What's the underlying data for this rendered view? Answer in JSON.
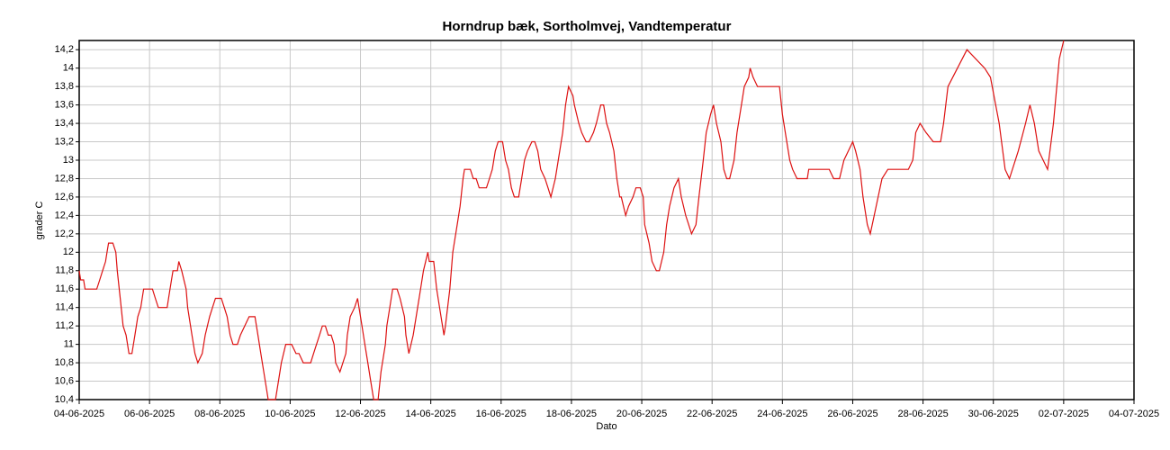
{
  "chart_data": {
    "type": "line",
    "title": "Horndrup bæk, Sortholmvej, Vandtemperatur",
    "x_label": "Dato",
    "y_label": "grader C",
    "grid": true,
    "xlim": [
      "2025-06-04",
      "2025-07-04"
    ],
    "xticks": [
      {
        "value": "2025-06-04",
        "label": "04-06-2025"
      },
      {
        "value": "2025-06-06",
        "label": "06-06-2025"
      },
      {
        "value": "2025-06-08",
        "label": "08-06-2025"
      },
      {
        "value": "2025-06-10",
        "label": "10-06-2025"
      },
      {
        "value": "2025-06-12",
        "label": "12-06-2025"
      },
      {
        "value": "2025-06-14",
        "label": "14-06-2025"
      },
      {
        "value": "2025-06-16",
        "label": "16-06-2025"
      },
      {
        "value": "2025-06-18",
        "label": "18-06-2025"
      },
      {
        "value": "2025-06-20",
        "label": "20-06-2025"
      },
      {
        "value": "2025-06-22",
        "label": "22-06-2025"
      },
      {
        "value": "2025-06-24",
        "label": "24-06-2025"
      },
      {
        "value": "2025-06-26",
        "label": "26-06-2025"
      },
      {
        "value": "2025-06-28",
        "label": "28-06-2025"
      },
      {
        "value": "2025-06-30",
        "label": "30-06-2025"
      },
      {
        "value": "2025-07-02",
        "label": "02-07-2025"
      },
      {
        "value": "2025-07-04",
        "label": "04-07-2025"
      }
    ],
    "ylim": [
      10.4,
      14.3
    ],
    "yticks": [
      {
        "value": 10.4,
        "label": "10,4"
      },
      {
        "value": 10.6,
        "label": "10,6"
      },
      {
        "value": 10.8,
        "label": "10,8"
      },
      11,
      {
        "value": 11.2,
        "label": "11,2"
      },
      {
        "value": 11.4,
        "label": "11,4"
      },
      {
        "value": 11.6,
        "label": "11,6"
      },
      {
        "value": 11.8,
        "label": "11,8"
      },
      12,
      {
        "value": 12.2,
        "label": "12,2"
      },
      {
        "value": 12.4,
        "label": "12,4"
      },
      {
        "value": 12.6,
        "label": "12,6"
      },
      {
        "value": 12.8,
        "label": "12,8"
      },
      13,
      {
        "value": 13.2,
        "label": "13,2"
      },
      {
        "value": 13.4,
        "label": "13,4"
      },
      {
        "value": 13.6,
        "label": "13,6"
      },
      {
        "value": 13.8,
        "label": "13,8"
      },
      14,
      {
        "value": 14.2,
        "label": "14,2"
      }
    ],
    "x": [
      "2025-06-04 00:00",
      "2025-06-04 01:00",
      "2025-06-04 03:00",
      "2025-06-04 04:00",
      "2025-06-04 12:00",
      "2025-06-04 14:00",
      "2025-06-04 16:00",
      "2025-06-04 18:00",
      "2025-06-04 19:00",
      "2025-06-04 20:00",
      "2025-06-04 23:00",
      "2025-06-05 01:00",
      "2025-06-05 02:00",
      "2025-06-05 04:00",
      "2025-06-05 06:00",
      "2025-06-05 08:00",
      "2025-06-05 10:00",
      "2025-06-05 12:00",
      "2025-06-05 14:00",
      "2025-06-05 16:00",
      "2025-06-05 18:00",
      "2025-06-05 20:00",
      "2025-06-06 02:00",
      "2025-06-06 04:00",
      "2025-06-06 06:00",
      "2025-06-06 12:00",
      "2025-06-06 14:00",
      "2025-06-06 16:00",
      "2025-06-06 19:00",
      "2025-06-06 20:00",
      "2025-06-06 22:00",
      "2025-06-07 01:00",
      "2025-06-07 02:00",
      "2025-06-07 05:00",
      "2025-06-07 07:00",
      "2025-06-07 09:00",
      "2025-06-07 12:00",
      "2025-06-07 14:00",
      "2025-06-07 17:00",
      "2025-06-07 19:00",
      "2025-06-07 21:00",
      "2025-06-08 01:00",
      "2025-06-08 03:00",
      "2025-06-08 05:00",
      "2025-06-08 07:00",
      "2025-06-08 09:00",
      "2025-06-08 12:00",
      "2025-06-08 14:00",
      "2025-06-08 17:00",
      "2025-06-08 20:00",
      "2025-06-09 00:00",
      "2025-06-09 02:00",
      "2025-06-09 04:00",
      "2025-06-09 06:00",
      "2025-06-09 08:00",
      "2025-06-09 09:00",
      "2025-06-09 14:00",
      "2025-06-09 16:00",
      "2025-06-09 18:00",
      "2025-06-09 21:00",
      "2025-06-10 01:00",
      "2025-06-10 04:00",
      "2025-06-10 06:00",
      "2025-06-10 09:00",
      "2025-06-10 14:00",
      "2025-06-10 16:00",
      "2025-06-10 18:00",
      "2025-06-10 20:00",
      "2025-06-10 22:00",
      "2025-06-11 00:00",
      "2025-06-11 02:00",
      "2025-06-11 04:00",
      "2025-06-11 06:00",
      "2025-06-11 07:00",
      "2025-06-11 10:00",
      "2025-06-11 12:00",
      "2025-06-11 14:00",
      "2025-06-11 15:00",
      "2025-06-11 17:00",
      "2025-06-11 20:00",
      "2025-06-11 22:00",
      "2025-06-11 23:00",
      "2025-06-12 01:00",
      "2025-06-12 03:00",
      "2025-06-12 05:00",
      "2025-06-12 07:00",
      "2025-06-12 09:00",
      "2025-06-12 12:00",
      "2025-06-12 14:00",
      "2025-06-12 17:00",
      "2025-06-12 18:00",
      "2025-06-12 20:00",
      "2025-06-12 22:00",
      "2025-06-13 01:00",
      "2025-06-13 03:00",
      "2025-06-13 06:00",
      "2025-06-13 07:00",
      "2025-06-13 09:00",
      "2025-06-13 12:00",
      "2025-06-13 14:00",
      "2025-06-13 17:00",
      "2025-06-13 19:00",
      "2025-06-13 22:00",
      "2025-06-13 23:00",
      "2025-06-14 02:00",
      "2025-06-14 04:00",
      "2025-06-14 06:00",
      "2025-06-14 09:00",
      "2025-06-14 10:00",
      "2025-06-14 13:00",
      "2025-06-14 15:00",
      "2025-06-14 18:00",
      "2025-06-14 20:00",
      "2025-06-14 22:00",
      "2025-06-14 23:00",
      "2025-06-15 03:00",
      "2025-06-15 05:00",
      "2025-06-15 07:00",
      "2025-06-15 09:00",
      "2025-06-15 14:00",
      "2025-06-15 16:00",
      "2025-06-15 18:00",
      "2025-06-15 20:00",
      "2025-06-15 22:00",
      "2025-06-16 01:00",
      "2025-06-16 03:00",
      "2025-06-16 05:00",
      "2025-06-16 07:00",
      "2025-06-16 09:00",
      "2025-06-16 12:00",
      "2025-06-16 14:00",
      "2025-06-16 16:00",
      "2025-06-16 18:00",
      "2025-06-16 21:00",
      "2025-06-16 23:00",
      "2025-06-17 01:00",
      "2025-06-17 03:00",
      "2025-06-17 06:00",
      "2025-06-17 08:00",
      "2025-06-17 10:00",
      "2025-06-17 13:00",
      "2025-06-17 15:00",
      "2025-06-17 18:00",
      "2025-06-17 20:00",
      "2025-06-17 22:00",
      "2025-06-18 01:00",
      "2025-06-18 02:00",
      "2025-06-18 05:00",
      "2025-06-18 07:00",
      "2025-06-18 10:00",
      "2025-06-18 12:00",
      "2025-06-18 15:00",
      "2025-06-18 17:00",
      "2025-06-18 20:00",
      "2025-06-18 22:00",
      "2025-06-19 00:00",
      "2025-06-19 02:00",
      "2025-06-19 05:00",
      "2025-06-19 07:00",
      "2025-06-19 09:00",
      "2025-06-19 10:00",
      "2025-06-19 13:00",
      "2025-06-19 15:00",
      "2025-06-19 18:00",
      "2025-06-19 20:00",
      "2025-06-19 23:00",
      "2025-06-20 01:00",
      "2025-06-20 02:00",
      "2025-06-20 05:00",
      "2025-06-20 07:00",
      "2025-06-20 10:00",
      "2025-06-20 12:00",
      "2025-06-20 15:00",
      "2025-06-20 17:00",
      "2025-06-20 19:00",
      "2025-06-20 22:00",
      "2025-06-21 01:00",
      "2025-06-21 03:00",
      "2025-06-21 06:00",
      "2025-06-21 08:00",
      "2025-06-21 10:00",
      "2025-06-21 13:00",
      "2025-06-21 15:00",
      "2025-06-21 18:00",
      "2025-06-21 20:00",
      "2025-06-21 23:00",
      "2025-06-22 01:00",
      "2025-06-22 03:00",
      "2025-06-22 06:00",
      "2025-06-22 08:00",
      "2025-06-22 10:00",
      "2025-06-22 12:00",
      "2025-06-22 15:00",
      "2025-06-22 17:00",
      "2025-06-22 20:00",
      "2025-06-22 22:00",
      "2025-06-23 01:00",
      "2025-06-23 02:00",
      "2025-06-23 04:00",
      "2025-06-23 07:00",
      "2025-06-23 22:00",
      "2025-06-24 00:00",
      "2025-06-24 03:00",
      "2025-06-24 05:00",
      "2025-06-24 07:00",
      "2025-06-24 10:00",
      "2025-06-24 17:00",
      "2025-06-24 18:00",
      "2025-06-25 05:00",
      "2025-06-25 08:00",
      "2025-06-25 11:00",
      "2025-06-25 15:00",
      "2025-06-25 18:00",
      "2025-06-25 21:00",
      "2025-06-26 00:00",
      "2025-06-26 02:00",
      "2025-06-26 05:00",
      "2025-06-26 07:00",
      "2025-06-26 10:00",
      "2025-06-26 12:00",
      "2025-06-26 16:00",
      "2025-06-26 20:00",
      "2025-06-27 00:00",
      "2025-06-27 07:00",
      "2025-06-27 14:00",
      "2025-06-27 17:00",
      "2025-06-27 19:00",
      "2025-06-27 22:00",
      "2025-06-28 02:00",
      "2025-06-28 07:00",
      "2025-06-28 12:00",
      "2025-06-28 14:00",
      "2025-06-28 17:00",
      "2025-06-29 06:00",
      "2025-06-29 18:00",
      "2025-06-29 22:00",
      "2025-06-30 04:00",
      "2025-06-30 08:00",
      "2025-06-30 11:00",
      "2025-06-30 17:00",
      "2025-06-30 22:00",
      "2025-07-01 01:00",
      "2025-07-01 04:00",
      "2025-07-01 07:00",
      "2025-07-01 13:00",
      "2025-07-01 17:00",
      "2025-07-01 21:00",
      "2025-07-02 00:00"
    ],
    "series": [
      {
        "color": "#dd1111",
        "values": [
          11.8,
          11.7,
          11.7,
          11.6,
          11.6,
          11.7,
          11.8,
          11.9,
          12.0,
          12.1,
          12.1,
          12.0,
          11.8,
          11.5,
          11.2,
          11.1,
          10.9,
          10.9,
          11.1,
          11.3,
          11.4,
          11.6,
          11.6,
          11.5,
          11.4,
          11.4,
          11.6,
          11.8,
          11.8,
          11.9,
          11.8,
          11.6,
          11.4,
          11.1,
          10.9,
          10.8,
          10.9,
          11.1,
          11.3,
          11.4,
          11.5,
          11.5,
          11.4,
          11.3,
          11.1,
          11.0,
          11.0,
          11.1,
          11.2,
          11.3,
          11.3,
          11.1,
          10.9,
          10.7,
          10.5,
          10.4,
          10.4,
          10.6,
          10.8,
          11.0,
          11.0,
          10.9,
          10.9,
          10.8,
          10.8,
          10.9,
          11.0,
          11.1,
          11.2,
          11.2,
          11.1,
          11.1,
          11.0,
          10.8,
          10.7,
          10.8,
          10.9,
          11.1,
          11.3,
          11.4,
          11.5,
          11.4,
          11.2,
          11.0,
          10.8,
          10.6,
          10.4,
          10.4,
          10.7,
          11.0,
          11.2,
          11.4,
          11.6,
          11.6,
          11.5,
          11.3,
          11.1,
          10.9,
          11.1,
          11.3,
          11.6,
          11.8,
          12.0,
          11.9,
          11.9,
          11.6,
          11.4,
          11.1,
          11.2,
          11.6,
          12.0,
          12.3,
          12.5,
          12.8,
          12.9,
          12.9,
          12.8,
          12.8,
          12.7,
          12.7,
          12.8,
          12.9,
          13.1,
          13.2,
          13.2,
          13.0,
          12.9,
          12.7,
          12.6,
          12.6,
          12.8,
          13.0,
          13.1,
          13.2,
          13.2,
          13.1,
          12.9,
          12.8,
          12.7,
          12.6,
          12.8,
          13.0,
          13.3,
          13.6,
          13.8,
          13.7,
          13.6,
          13.4,
          13.3,
          13.2,
          13.2,
          13.3,
          13.4,
          13.6,
          13.6,
          13.4,
          13.3,
          13.1,
          12.8,
          12.6,
          12.6,
          12.4,
          12.5,
          12.6,
          12.7,
          12.7,
          12.6,
          12.3,
          12.1,
          11.9,
          11.8,
          11.8,
          12.0,
          12.3,
          12.5,
          12.7,
          12.8,
          12.6,
          12.4,
          12.3,
          12.2,
          12.3,
          12.6,
          13.0,
          13.3,
          13.5,
          13.6,
          13.4,
          13.2,
          12.9,
          12.8,
          12.8,
          13.0,
          13.3,
          13.6,
          13.8,
          13.9,
          14.0,
          13.9,
          13.8,
          13.8,
          13.5,
          13.2,
          13.0,
          12.9,
          12.8,
          12.8,
          12.9,
          12.9,
          12.9,
          12.8,
          12.8,
          13.0,
          13.1,
          13.2,
          13.1,
          12.9,
          12.6,
          12.3,
          12.2,
          12.5,
          12.8,
          12.9,
          12.9,
          12.9,
          13.0,
          13.3,
          13.4,
          13.3,
          13.2,
          13.2,
          13.4,
          13.8,
          14.2,
          14.0,
          13.9,
          13.4,
          12.9,
          12.8,
          13.1,
          13.4,
          13.6,
          13.4,
          13.1,
          12.9,
          13.4,
          14.1,
          14.3
        ]
      }
    ]
  }
}
